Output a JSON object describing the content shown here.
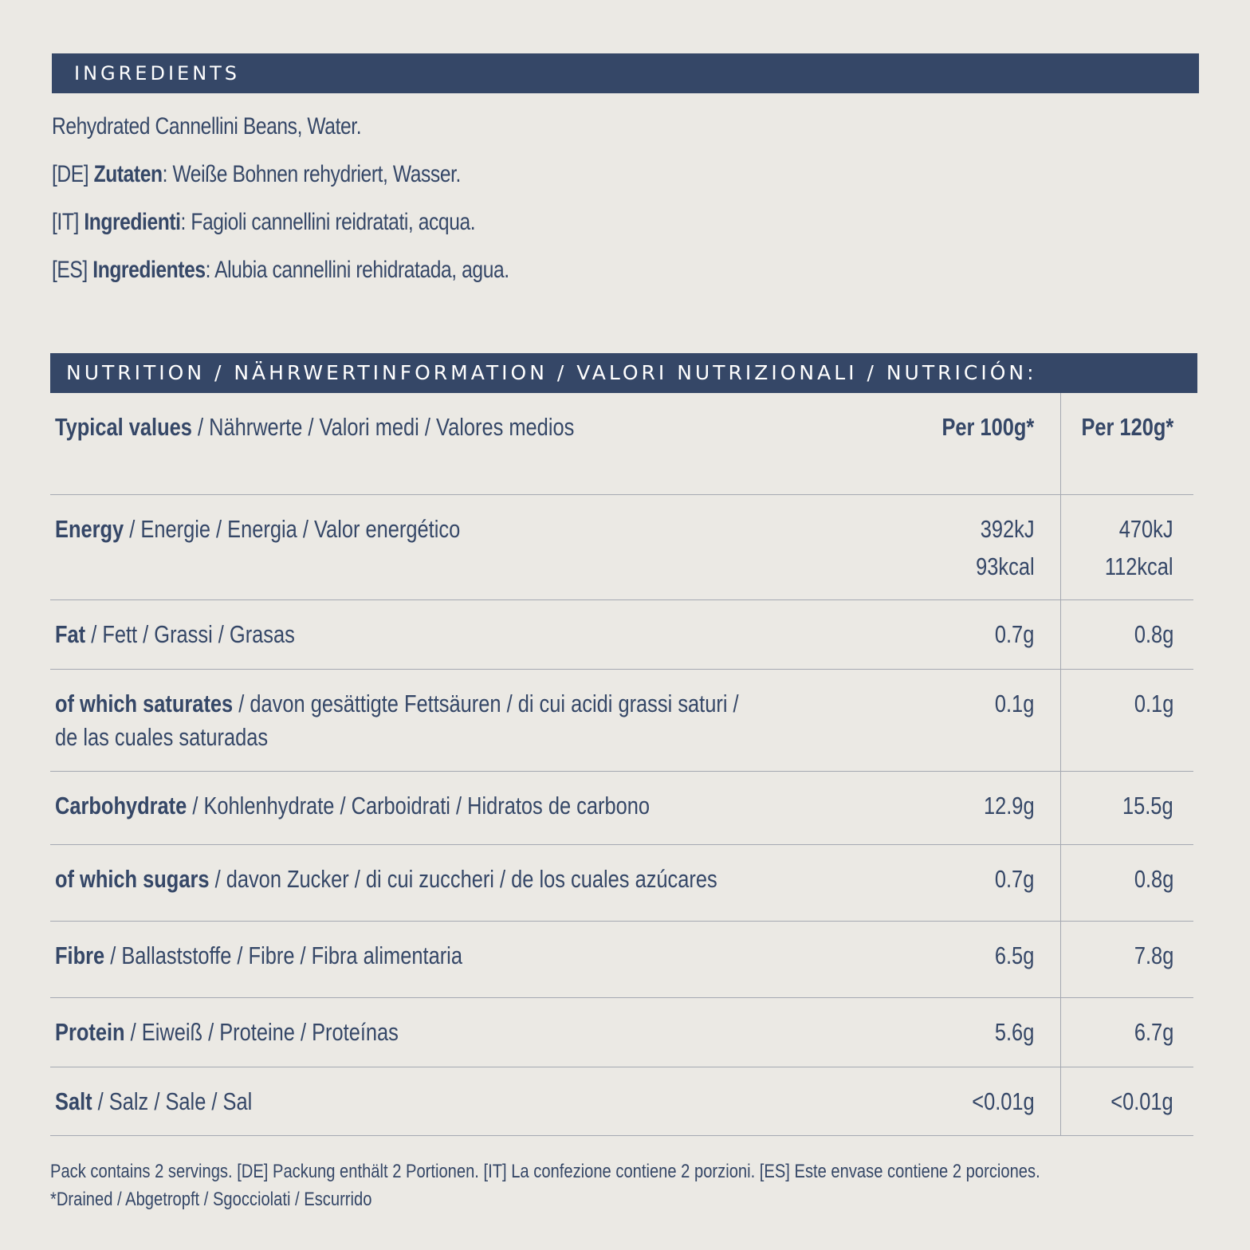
{
  "ingredients": {
    "title": "INGREDIENTS",
    "lines": [
      {
        "prefix": "",
        "bold": "",
        "text": "Rehydrated Cannellini Beans, Water."
      },
      {
        "prefix": "[DE] ",
        "bold": "Zutaten",
        "text": ": Weiße Bohnen rehydriert, Wasser."
      },
      {
        "prefix": "[IT] ",
        "bold": "Ingredienti",
        "text": ": Fagioli cannellini reidratati, acqua."
      },
      {
        "prefix": "[ES] ",
        "bold": "Ingredientes",
        "text": ": Alubia cannellini rehidratada, agua."
      }
    ]
  },
  "nutrition": {
    "title": "NUTRITION / NÄHRWERTINFORMATION / VALORI NUTRIZIONALI / NUTRICIÓN:",
    "header": {
      "bold": "Typical values",
      "rest": " / Nährwerte / Valori medi / Valores medios",
      "col1": "Per 100g*",
      "col2": "Per 120g*"
    },
    "rows": [
      {
        "bold": "Energy",
        "rest": " / Energie / Energia / Valor energético",
        "rest2": "",
        "v100": "392kJ",
        "v100b": "93kcal",
        "v120": "470kJ",
        "v120b": "112kcal"
      },
      {
        "bold": "Fat",
        "rest": " / Fett / Grassi / Grasas",
        "rest2": "",
        "v100": "0.7g",
        "v100b": "",
        "v120": "0.8g",
        "v120b": ""
      },
      {
        "bold": "of which saturates",
        "rest": " / davon gesättigte Fettsäuren / di cui acidi grassi saturi /",
        "rest2": "de las cuales saturadas",
        "v100": "0.1g",
        "v100b": "",
        "v120": "0.1g",
        "v120b": ""
      },
      {
        "bold": "Carbohydrate",
        "rest": " / Kohlenhydrate / Carboidrati / Hidratos de carbono",
        "rest2": "",
        "v100": "12.9g",
        "v100b": "",
        "v120": "15.5g",
        "v120b": ""
      },
      {
        "bold": "of which sugars",
        "rest": " / davon Zucker / di cui zuccheri / de los cuales azúcares",
        "rest2": "",
        "v100": "0.7g",
        "v100b": "",
        "v120": "0.8g",
        "v120b": ""
      },
      {
        "bold": "Fibre",
        "rest": " / Ballaststoffe / Fibre / Fibra alimentaria",
        "rest2": "",
        "v100": "6.5g",
        "v100b": "",
        "v120": "7.8g",
        "v120b": ""
      },
      {
        "bold": "Protein",
        "rest": " / Eiweiß / Proteine / Proteínas",
        "rest2": "",
        "v100": "5.6g",
        "v100b": "",
        "v120": "6.7g",
        "v120b": ""
      },
      {
        "bold": "Salt",
        "rest": " / Salz / Sale / Sal",
        "rest2": "",
        "v100": "<0.01g",
        "v100b": "",
        "v120": "<0.01g",
        "v120b": ""
      }
    ]
  },
  "footer": {
    "line1": "Pack contains 2 servings. [DE] Packung enthält 2 Portionen. [IT] La confezione contiene 2 porzioni. [ES] Este envase contiene 2 porciones.",
    "line2": "*Drained / Abgetropft / Sgocciolati / Escurrido"
  }
}
